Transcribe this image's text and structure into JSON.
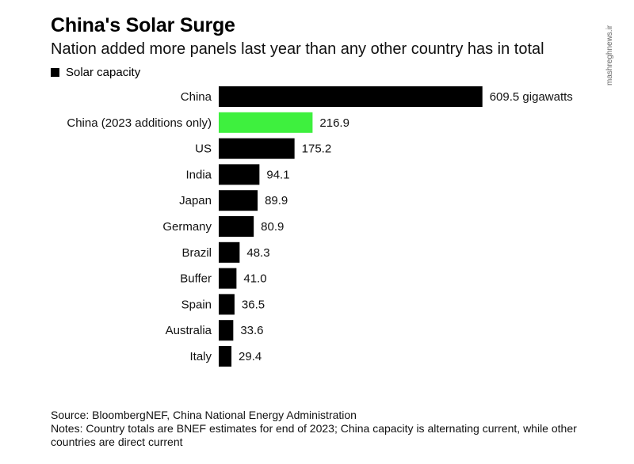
{
  "chart_data": {
    "type": "bar",
    "orientation": "horizontal",
    "title": "China's Solar Surge",
    "subtitle": "Nation added more panels last year than any other country has in total",
    "legend": [
      {
        "label": "Solar capacity",
        "color": "#000000"
      }
    ],
    "unit_label": "gigawatts",
    "categories": [
      "China",
      "China (2023 additions only)",
      "US",
      "India",
      "Japan",
      "Germany",
      "Brazil",
      "Buffer",
      "Spain",
      "Australia",
      "Italy"
    ],
    "values": [
      609.5,
      216.9,
      175.2,
      94.1,
      89.9,
      80.9,
      48.3,
      41.0,
      36.5,
      33.6,
      29.4
    ],
    "value_labels": [
      "609.5 gigawatts",
      "216.9",
      "175.2",
      "94.1",
      "89.9",
      "80.9",
      "48.3",
      "41.0",
      "36.5",
      "33.6",
      "29.4"
    ],
    "colors": [
      "#000000",
      "#3ef03e",
      "#000000",
      "#000000",
      "#000000",
      "#000000",
      "#000000",
      "#000000",
      "#000000",
      "#000000",
      "#000000"
    ],
    "xlim": [
      0,
      610
    ],
    "source": "Source: BloombergNEF, China National Energy Administration",
    "notes": "Notes: Country totals are BNEF estimates for end of 2023; China capacity is alternating current, while other countries are direct current"
  },
  "watermark": "mashreghnews.ir"
}
